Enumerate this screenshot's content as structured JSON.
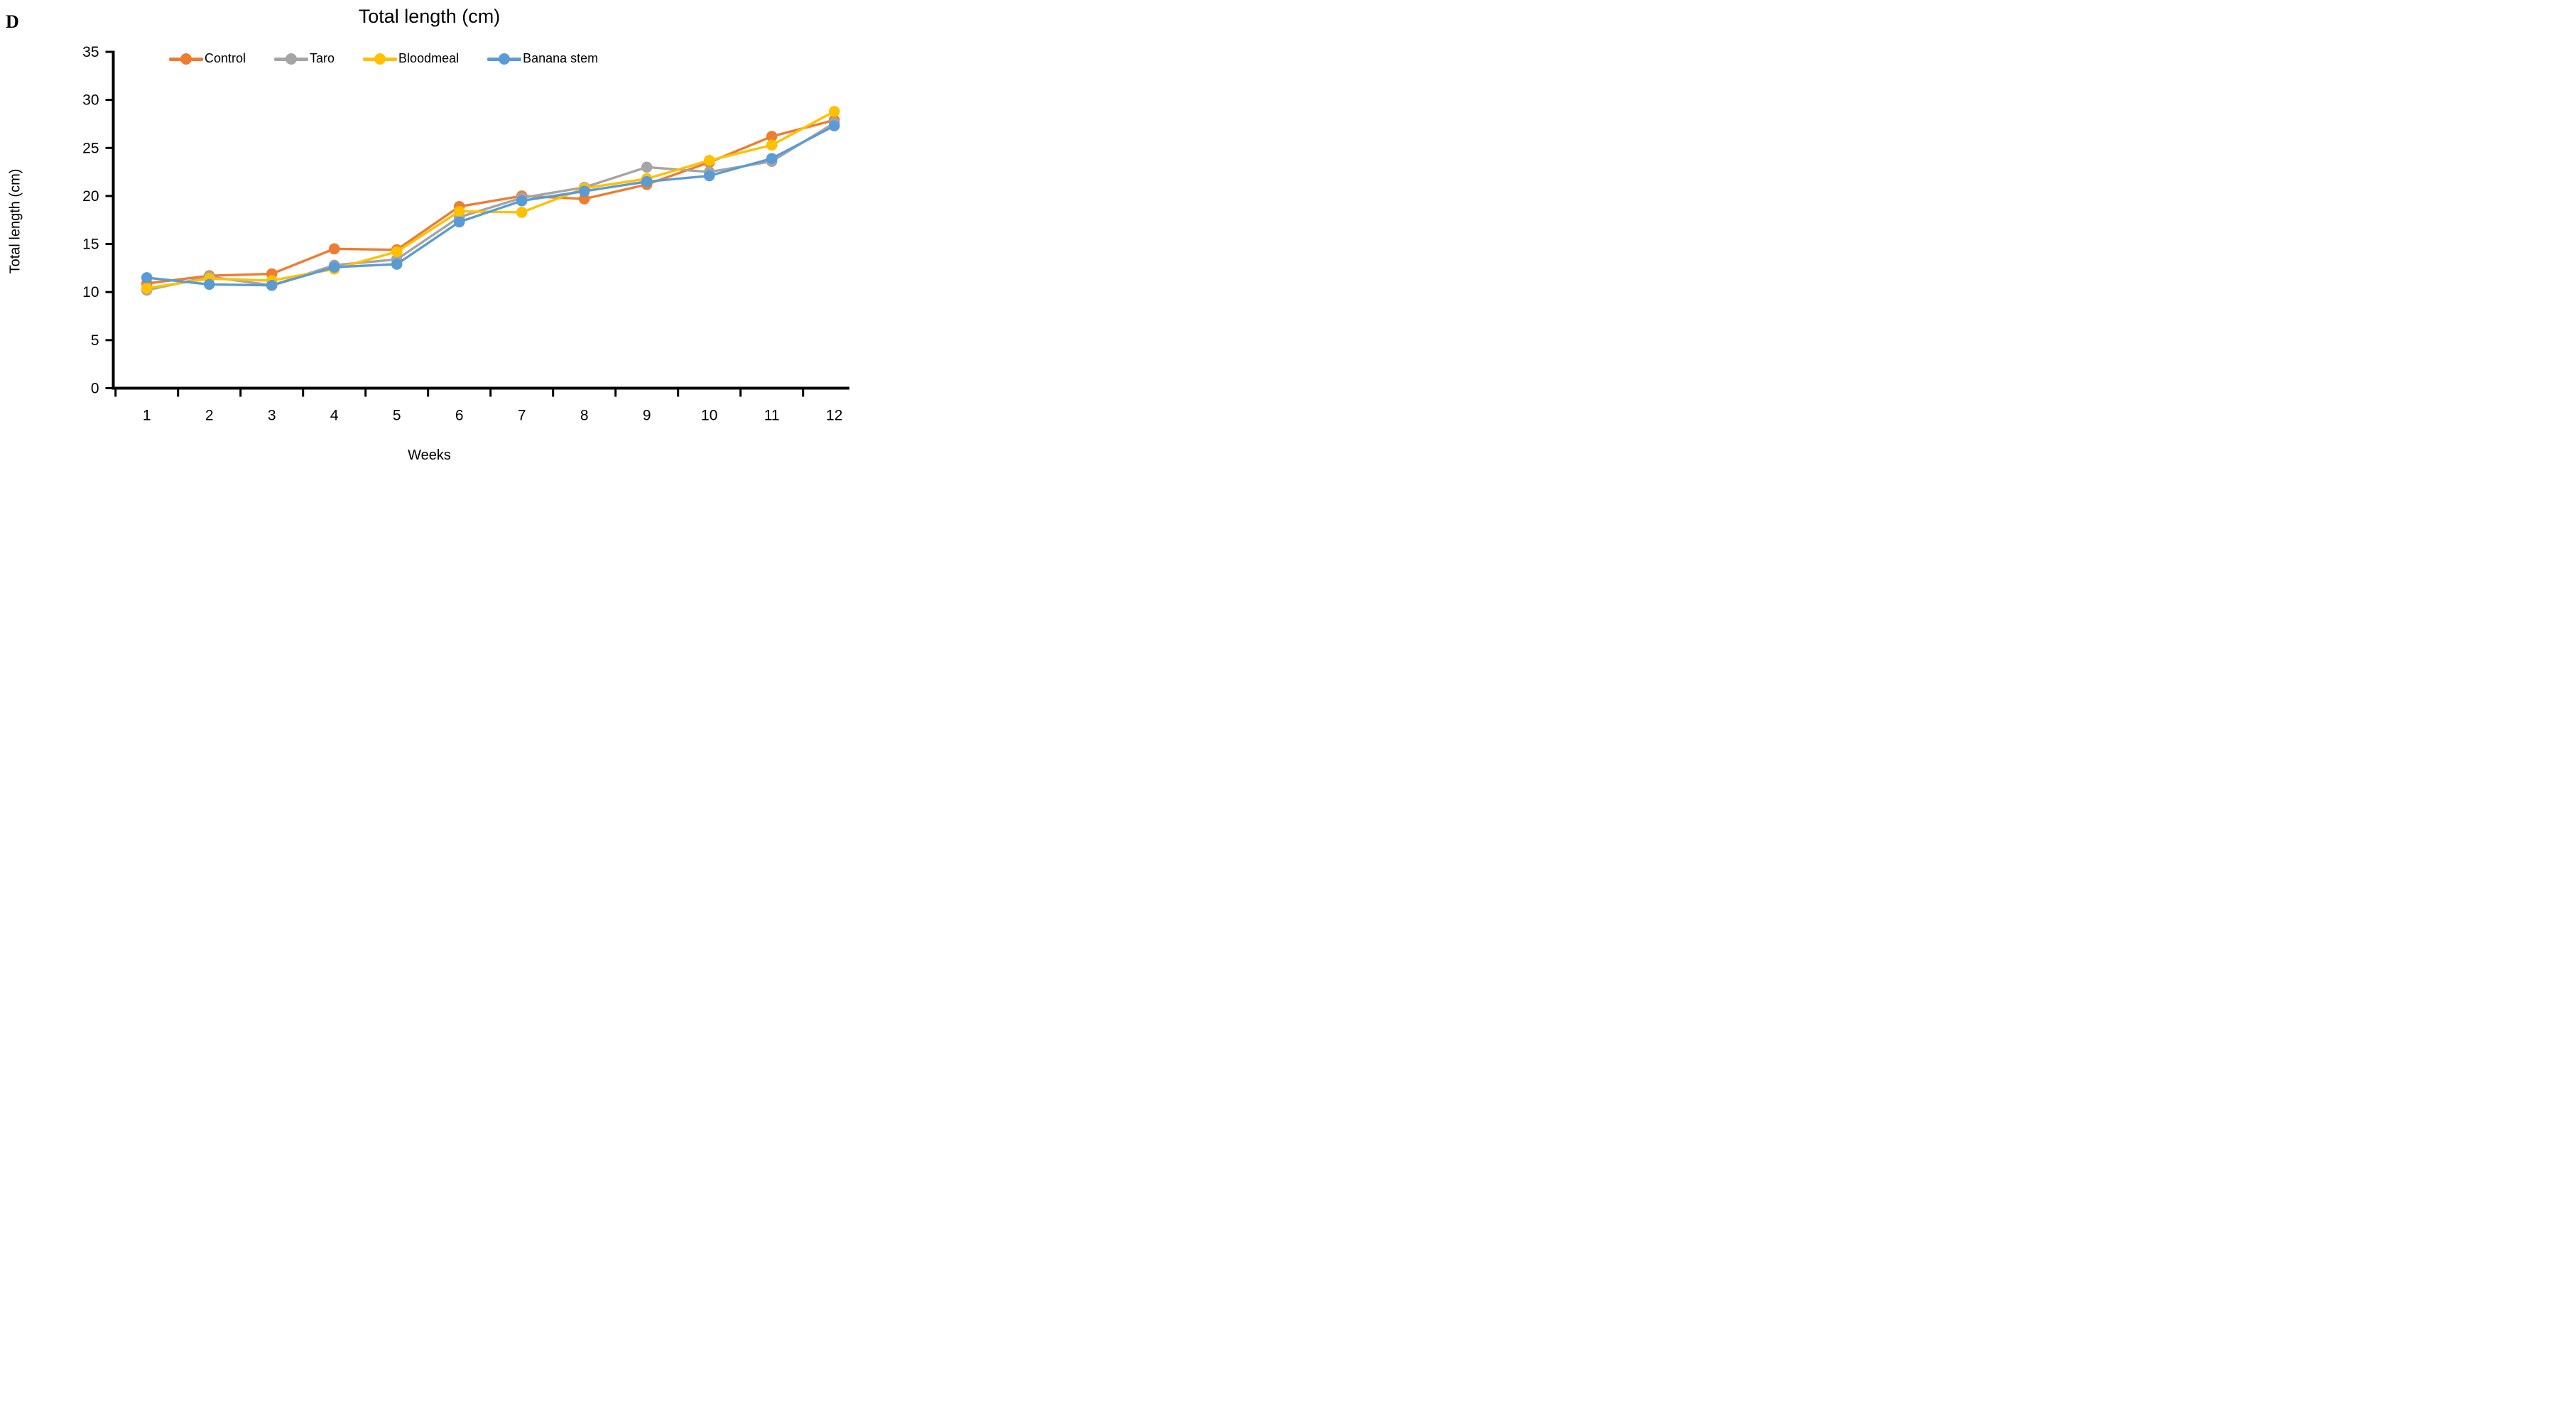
{
  "page": {
    "panel_label": "D",
    "background_color": "#ffffff"
  },
  "chart": {
    "title": "Total length (cm)",
    "y_axis": {
      "label": "Total length (cm)",
      "ticks": [
        0,
        5,
        10,
        15,
        20,
        25,
        30,
        35
      ]
    },
    "x_axis": {
      "label": "Weeks",
      "ticks": [
        1,
        2,
        3,
        4,
        5,
        6,
        7,
        8,
        9,
        10,
        11,
        12
      ]
    },
    "axis_color": "#000000",
    "text_color": "#000000"
  },
  "chart_data": {
    "type": "line",
    "title": "Total length (cm)",
    "xlabel": "Weeks",
    "ylabel": "Total length (cm)",
    "x": [
      1,
      2,
      3,
      4,
      5,
      6,
      7,
      8,
      9,
      10,
      11,
      12
    ],
    "ylim": [
      0,
      35
    ],
    "grid": false,
    "legend_position": "top",
    "marker": "circle",
    "series": [
      {
        "name": "Control",
        "color": "#ED7D31",
        "values": [
          10.9,
          11.7,
          11.9,
          14.5,
          14.4,
          18.9,
          20.0,
          19.7,
          21.2,
          23.5,
          26.2,
          27.9
        ]
      },
      {
        "name": "Taro",
        "color": "#A5A5A5",
        "values": [
          10.2,
          11.6,
          10.7,
          12.8,
          13.4,
          17.8,
          19.8,
          20.9,
          23.0,
          22.5,
          23.6,
          27.6
        ]
      },
      {
        "name": "Bloodmeal",
        "color": "#FFC000",
        "values": [
          10.4,
          11.4,
          11.2,
          12.4,
          14.2,
          18.4,
          18.3,
          20.8,
          21.8,
          23.7,
          25.3,
          28.8
        ]
      },
      {
        "name": "Banana stem",
        "color": "#5B9BD5",
        "values": [
          11.5,
          10.8,
          10.7,
          12.6,
          12.9,
          17.3,
          19.5,
          20.5,
          21.5,
          22.1,
          23.9,
          27.3
        ]
      }
    ]
  }
}
